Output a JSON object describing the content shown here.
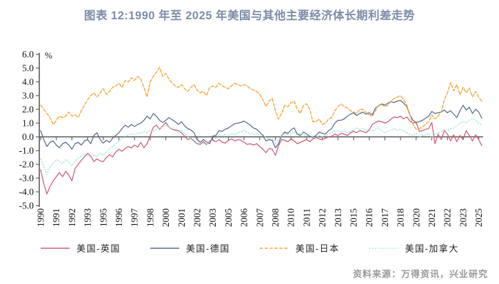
{
  "page": {
    "title": "图表 12:1990 年至 2025 年美国与其他主要经济体长期利差走势",
    "source": "资料来源：万得资讯，兴业研究"
  },
  "chart_data": {
    "type": "line",
    "title": "图表 12:1990 年至 2025 年美国与其他主要经济体长期利差走势",
    "unit_label": "%",
    "legend_position": "bottom",
    "grid": false,
    "x_axis": {
      "start_year": 1990.0,
      "step_years": 0.25,
      "tick_labels": [
        "1990",
        "1991",
        "1992",
        "1993",
        "1995",
        "1996",
        "1997",
        "1998",
        "2000",
        "2001",
        "2002",
        "2003",
        "2005",
        "2006",
        "2007",
        "2008",
        "2010",
        "2011",
        "2012",
        "2013",
        "2015",
        "2016",
        "2017",
        "2018",
        "2020",
        "2021",
        "2022",
        "2023",
        "2025"
      ]
    },
    "y_axis": {
      "min": -5.0,
      "max": 6.0,
      "tick_labels": [
        "6.0",
        "5.0",
        "4.0",
        "3.0",
        "2.0",
        "1.0",
        "0.0",
        "-1.0",
        "-2.0",
        "-3.0",
        "-4.0",
        "-5.0"
      ]
    },
    "axis_color": "#595959",
    "series": [
      {
        "name": "美国-英国",
        "color": "#cd5a72",
        "style": "solid",
        "values": [
          -2.4,
          -3.4,
          -4.15,
          -3.6,
          -3.2,
          -2.9,
          -2.6,
          -2.9,
          -2.5,
          -2.8,
          -3.2,
          -2.3,
          -2.0,
          -1.7,
          -1.45,
          -1.2,
          -1.4,
          -1.8,
          -1.6,
          -1.75,
          -1.8,
          -1.5,
          -1.3,
          -1.45,
          -1.1,
          -0.9,
          -1.05,
          -0.85,
          -0.7,
          -0.8,
          -0.6,
          -0.75,
          -0.4,
          -0.8,
          -0.5,
          0.1,
          0.7,
          0.85,
          0.55,
          0.8,
          1.05,
          0.7,
          0.55,
          0.5,
          0.45,
          0.3,
          0.05,
          -0.2,
          -0.1,
          -0.3,
          -0.5,
          -0.55,
          -0.35,
          -0.55,
          -0.3,
          -0.25,
          -0.35,
          -0.2,
          -0.4,
          -0.45,
          -0.25,
          -0.15,
          -0.3,
          -0.2,
          -0.25,
          -0.4,
          -0.55,
          -0.5,
          -0.6,
          -0.5,
          -0.7,
          -0.9,
          -1.15,
          -0.85,
          -0.9,
          -1.35,
          -0.65,
          -0.2,
          -0.25,
          -0.35,
          -0.15,
          -0.3,
          -0.5,
          -0.4,
          -0.3,
          -0.2,
          -0.35,
          -0.15,
          -0.05,
          -0.15,
          -0.2,
          -0.1,
          0.0,
          0.05,
          0.2,
          0.1,
          0.25,
          0.2,
          0.1,
          0.3,
          0.4,
          0.3,
          0.45,
          0.4,
          0.3,
          0.5,
          0.9,
          1.05,
          1.15,
          1.1,
          1.0,
          1.1,
          1.3,
          1.45,
          1.4,
          1.5,
          1.3,
          1.45,
          1.15,
          1.0,
          1.05,
          0.4,
          0.45,
          0.55,
          0.6,
          1.05,
          -0.5,
          0.2,
          -0.2,
          0.45,
          0.2,
          -0.3,
          0.15,
          -0.35,
          0.1,
          -0.2,
          0.45,
          0.1,
          -0.3,
          0.15,
          -0.2,
          -0.65
        ]
      },
      {
        "name": "美国-德国",
        "color": "#55688a",
        "style": "solid",
        "values": [
          0.45,
          -0.2,
          -0.7,
          -0.4,
          -0.3,
          -0.6,
          -0.8,
          -0.5,
          -0.4,
          -0.6,
          -0.9,
          -0.5,
          -0.4,
          -0.6,
          -0.3,
          -0.2,
          -0.5,
          0.1,
          0.3,
          -0.2,
          -0.45,
          -0.25,
          -0.4,
          -0.1,
          0.1,
          0.3,
          0.6,
          0.85,
          0.7,
          0.9,
          0.75,
          0.9,
          1.0,
          1.2,
          1.5,
          1.3,
          1.7,
          1.5,
          1.2,
          1.05,
          1.2,
          1.4,
          1.25,
          1.1,
          0.9,
          1.1,
          0.8,
          0.6,
          0.5,
          0.3,
          -0.2,
          -0.4,
          -0.2,
          -0.35,
          -0.5,
          0.05,
          0.1,
          0.45,
          0.4,
          0.55,
          0.65,
          0.8,
          0.95,
          1.0,
          1.05,
          1.15,
          1.0,
          0.85,
          0.65,
          0.55,
          0.35,
          0.1,
          -0.3,
          -0.2,
          -0.25,
          -0.8,
          -0.5,
          0.1,
          0.35,
          0.25,
          0.5,
          0.65,
          0.2,
          0.1,
          0.35,
          0.2,
          0.05,
          -0.05,
          0.1,
          0.35,
          0.25,
          0.2,
          0.45,
          0.6,
          1.0,
          1.2,
          1.2,
          1.3,
          1.5,
          1.65,
          1.75,
          1.55,
          1.7,
          1.8,
          1.65,
          1.75,
          1.6,
          2.1,
          2.25,
          2.4,
          2.3,
          2.45,
          2.55,
          2.5,
          2.6,
          2.65,
          2.45,
          2.2,
          1.6,
          1.2,
          1.05,
          1.1,
          1.2,
          1.35,
          1.5,
          1.85,
          1.7,
          1.75,
          1.8,
          1.95,
          1.75,
          1.9,
          1.65,
          1.4,
          1.9,
          2.3,
          1.95,
          2.15,
          1.7,
          2.0,
          1.8,
          1.35
        ]
      },
      {
        "name": "美国-日本",
        "color": "#f2a53c",
        "style": "dashed",
        "values": [
          2.3,
          2.0,
          1.7,
          1.4,
          0.9,
          1.2,
          1.5,
          1.4,
          1.5,
          1.8,
          1.5,
          1.6,
          1.4,
          1.9,
          2.3,
          2.7,
          3.0,
          3.2,
          2.9,
          3.2,
          3.5,
          3.1,
          3.3,
          3.6,
          3.7,
          3.9,
          3.6,
          4.1,
          4.0,
          4.3,
          4.1,
          4.4,
          4.2,
          3.6,
          2.9,
          4.0,
          4.4,
          4.7,
          5.05,
          4.4,
          4.6,
          4.2,
          3.9,
          3.7,
          3.6,
          3.8,
          3.5,
          3.3,
          3.6,
          3.8,
          3.4,
          3.2,
          3.3,
          3.0,
          3.6,
          3.7,
          3.6,
          3.9,
          3.7,
          3.6,
          3.5,
          3.7,
          3.9,
          3.8,
          3.7,
          3.8,
          3.7,
          3.5,
          3.4,
          3.3,
          3.1,
          2.7,
          2.2,
          2.6,
          2.8,
          1.9,
          1.3,
          1.7,
          2.3,
          2.2,
          2.5,
          2.6,
          2.0,
          1.7,
          2.3,
          2.4,
          2.0,
          1.1,
          1.1,
          1.3,
          0.9,
          1.0,
          1.3,
          1.4,
          1.9,
          2.2,
          2.4,
          2.2,
          2.1,
          1.9,
          1.8,
          1.7,
          2.0,
          2.0,
          1.8,
          1.6,
          1.5,
          1.9,
          2.3,
          2.35,
          2.2,
          2.3,
          2.6,
          2.8,
          2.9,
          3.0,
          2.7,
          2.3,
          1.6,
          0.9,
          0.55,
          0.6,
          0.7,
          0.9,
          1.1,
          1.6,
          1.3,
          1.5,
          1.8,
          2.7,
          3.2,
          3.95,
          3.35,
          3.8,
          3.05,
          3.6,
          3.2,
          3.55,
          2.9,
          3.3,
          2.9,
          2.55
        ]
      },
      {
        "name": "美国-加拿大",
        "color": "#8edcd6",
        "style": "dotted",
        "values": [
          -1.6,
          -2.15,
          -2.75,
          -2.2,
          -1.9,
          -1.65,
          -1.8,
          -1.95,
          -1.65,
          -1.85,
          -2.1,
          -1.75,
          -1.55,
          -1.4,
          -1.25,
          -1.35,
          -1.55,
          -1.3,
          -1.45,
          -1.2,
          -1.35,
          -1.1,
          -0.9,
          -0.7,
          -0.5,
          -0.3,
          -0.1,
          0.05,
          0.1,
          0.25,
          0.15,
          0.3,
          0.25,
          0.4,
          0.3,
          0.5,
          0.4,
          0.55,
          0.65,
          0.75,
          0.8,
          0.7,
          0.5,
          0.45,
          0.3,
          0.5,
          0.25,
          0.05,
          -0.15,
          -0.35,
          -0.55,
          -0.4,
          -0.45,
          -0.6,
          -0.25,
          -0.3,
          -0.1,
          0.15,
          0.05,
          0.2,
          0.1,
          0.25,
          0.15,
          0.3,
          0.35,
          0.5,
          0.3,
          0.25,
          0.15,
          0.25,
          0.1,
          0.2,
          -0.05,
          -0.15,
          -0.1,
          -0.45,
          -0.2,
          0.1,
          0.25,
          0.15,
          0.2,
          0.35,
          0.15,
          0.25,
          0.15,
          0.05,
          0.1,
          0.0,
          -0.05,
          0.1,
          0.0,
          0.1,
          0.15,
          0.3,
          0.45,
          0.4,
          0.35,
          0.45,
          0.3,
          0.4,
          0.5,
          0.65,
          0.55,
          0.6,
          0.45,
          0.6,
          0.4,
          0.55,
          0.65,
          0.45,
          0.3,
          0.4,
          0.5,
          0.6,
          0.45,
          0.55,
          0.45,
          0.3,
          0.2,
          0.1,
          0.25,
          -0.05,
          0.1,
          0.15,
          0.25,
          -0.1,
          0.2,
          0.3,
          0.35,
          0.55,
          0.45,
          0.6,
          0.65,
          0.8,
          1.0,
          1.1,
          1.0,
          1.2,
          1.35,
          1.2,
          1.0,
          0.85
        ]
      }
    ]
  }
}
